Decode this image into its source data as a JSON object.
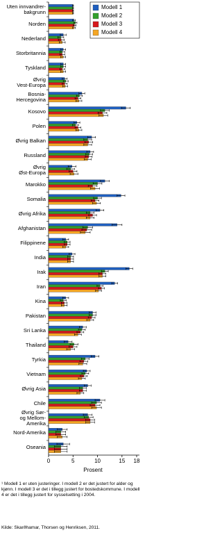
{
  "chart_data": {
    "type": "hbar-grouped-error",
    "x_label": "Prosent",
    "categories": [
      "Uten innvandrer-\nbakgrunn",
      "Norden",
      "Nederland",
      "Storbritannia",
      "Tyskland",
      "Øvrig\nVest-Europa",
      "Bosnia-\nHercegovina",
      "Kosovo",
      "Polen",
      "Øvrig Balkan",
      "Russland",
      "Øvrig\nØst-Europa",
      "Marokko",
      "Somalia",
      "Øvrig Afrika",
      "Afghanistan",
      "Filippinene",
      "India",
      "Irak",
      "Iran",
      "Kina",
      "Pakistan",
      "Sri Lanka",
      "Thailand",
      "Tyrkia",
      "Vietnam",
      "Øvrig Asia",
      "Chile",
      "Øvrig Sør-\nog Mellom-\nAmerika",
      "Nord-Amerika",
      "Oseania"
    ],
    "series": [
      {
        "name": "Modell 1",
        "color": "#1f5fbf",
        "values": [
          5,
          5.2,
          3,
          3,
          3,
          3.3,
          6.8,
          15.8,
          5.8,
          8.8,
          8.5,
          4.8,
          11.5,
          14.8,
          10.5,
          14,
          3.5,
          4.8,
          16.5,
          13.5,
          3.5,
          9,
          7,
          4,
          9.5,
          7.8,
          8,
          10.5,
          8,
          2.8,
          3
        ],
        "errors": [
          0.1,
          0.3,
          0.6,
          0.5,
          0.5,
          0.5,
          0.6,
          0.9,
          0.6,
          0.8,
          0.7,
          0.8,
          0.9,
          0.8,
          0.8,
          1,
          0.6,
          0.6,
          0.7,
          0.6,
          0.6,
          0.7,
          0.7,
          0.8,
          0.8,
          0.7,
          0.7,
          1,
          0.9,
          1,
          1.3
        ]
      },
      {
        "name": "Modell 2",
        "color": "#33a02c",
        "values": [
          5,
          5.5,
          2.5,
          2.8,
          3,
          3.5,
          6.3,
          11.5,
          5.5,
          8,
          8.3,
          4.5,
          10,
          10,
          8.5,
          8,
          3.8,
          4.5,
          11.5,
          10.5,
          3,
          9,
          6.8,
          5.2,
          7.5,
          7.5,
          7,
          9.8,
          8.2,
          2.5,
          2.5
        ],
        "errors": [
          0.1,
          0.3,
          0.6,
          0.5,
          0.5,
          0.5,
          0.6,
          0.9,
          0.6,
          0.8,
          0.7,
          0.8,
          0.9,
          0.8,
          0.8,
          1,
          0.6,
          0.6,
          0.7,
          0.6,
          0.6,
          0.7,
          0.7,
          0.8,
          0.8,
          0.7,
          0.7,
          1,
          0.9,
          1,
          1.3
        ]
      },
      {
        "name": "Modell 3",
        "color": "#d7191c",
        "values": [
          5,
          5.3,
          2.6,
          2.8,
          2.8,
          3.3,
          6,
          11,
          6,
          8.2,
          8.2,
          5,
          9,
          9.5,
          9,
          7.8,
          3.8,
          4.5,
          11,
          10.8,
          3.2,
          8.8,
          6.5,
          5,
          7.2,
          7.2,
          7,
          9.5,
          8.5,
          2.5,
          2.5
        ],
        "errors": [
          0.1,
          0.3,
          0.6,
          0.5,
          0.5,
          0.5,
          0.6,
          0.9,
          0.6,
          0.8,
          0.7,
          0.8,
          0.9,
          0.8,
          0.8,
          1,
          0.6,
          0.6,
          0.7,
          0.6,
          0.6,
          0.7,
          0.7,
          0.8,
          0.8,
          0.7,
          0.7,
          1,
          0.9,
          1,
          1.3
        ]
      },
      {
        "name": "Modell 4",
        "color": "#f5a623",
        "values": [
          5,
          5.2,
          2.8,
          3,
          3,
          3.4,
          6.2,
          11.2,
          6.2,
          8,
          8,
          5.2,
          9.5,
          9.8,
          8.5,
          7.5,
          3.5,
          4.5,
          11,
          10.2,
          3.2,
          8.5,
          6,
          4.5,
          7,
          6.8,
          6.5,
          9.8,
          8.5,
          2.8,
          2.5
        ],
        "errors": [
          0.1,
          0.3,
          0.6,
          0.5,
          0.5,
          0.5,
          0.6,
          0.9,
          0.6,
          0.8,
          0.7,
          0.8,
          0.9,
          0.8,
          0.8,
          1,
          0.6,
          0.6,
          0.7,
          0.6,
          0.6,
          0.7,
          0.7,
          0.8,
          0.8,
          0.7,
          0.7,
          1,
          0.9,
          1,
          1.3
        ]
      }
    ],
    "xlim": [
      0,
      18
    ],
    "xticks": [
      0,
      5,
      10,
      15,
      18
    ],
    "legend": "top-right",
    "grid": false
  },
  "footnote": "¹ Modell 1 er uten justeringer. I modell 2 er det justert for alder og kjønn. I modell 3 er det i tillegg justert for bostedskommune. I modell 4 er det i tillegg justert for sysselsetting i 2004.",
  "source": "Kilde: Skarðhamar, Thorsen og Henriksen, 2011."
}
